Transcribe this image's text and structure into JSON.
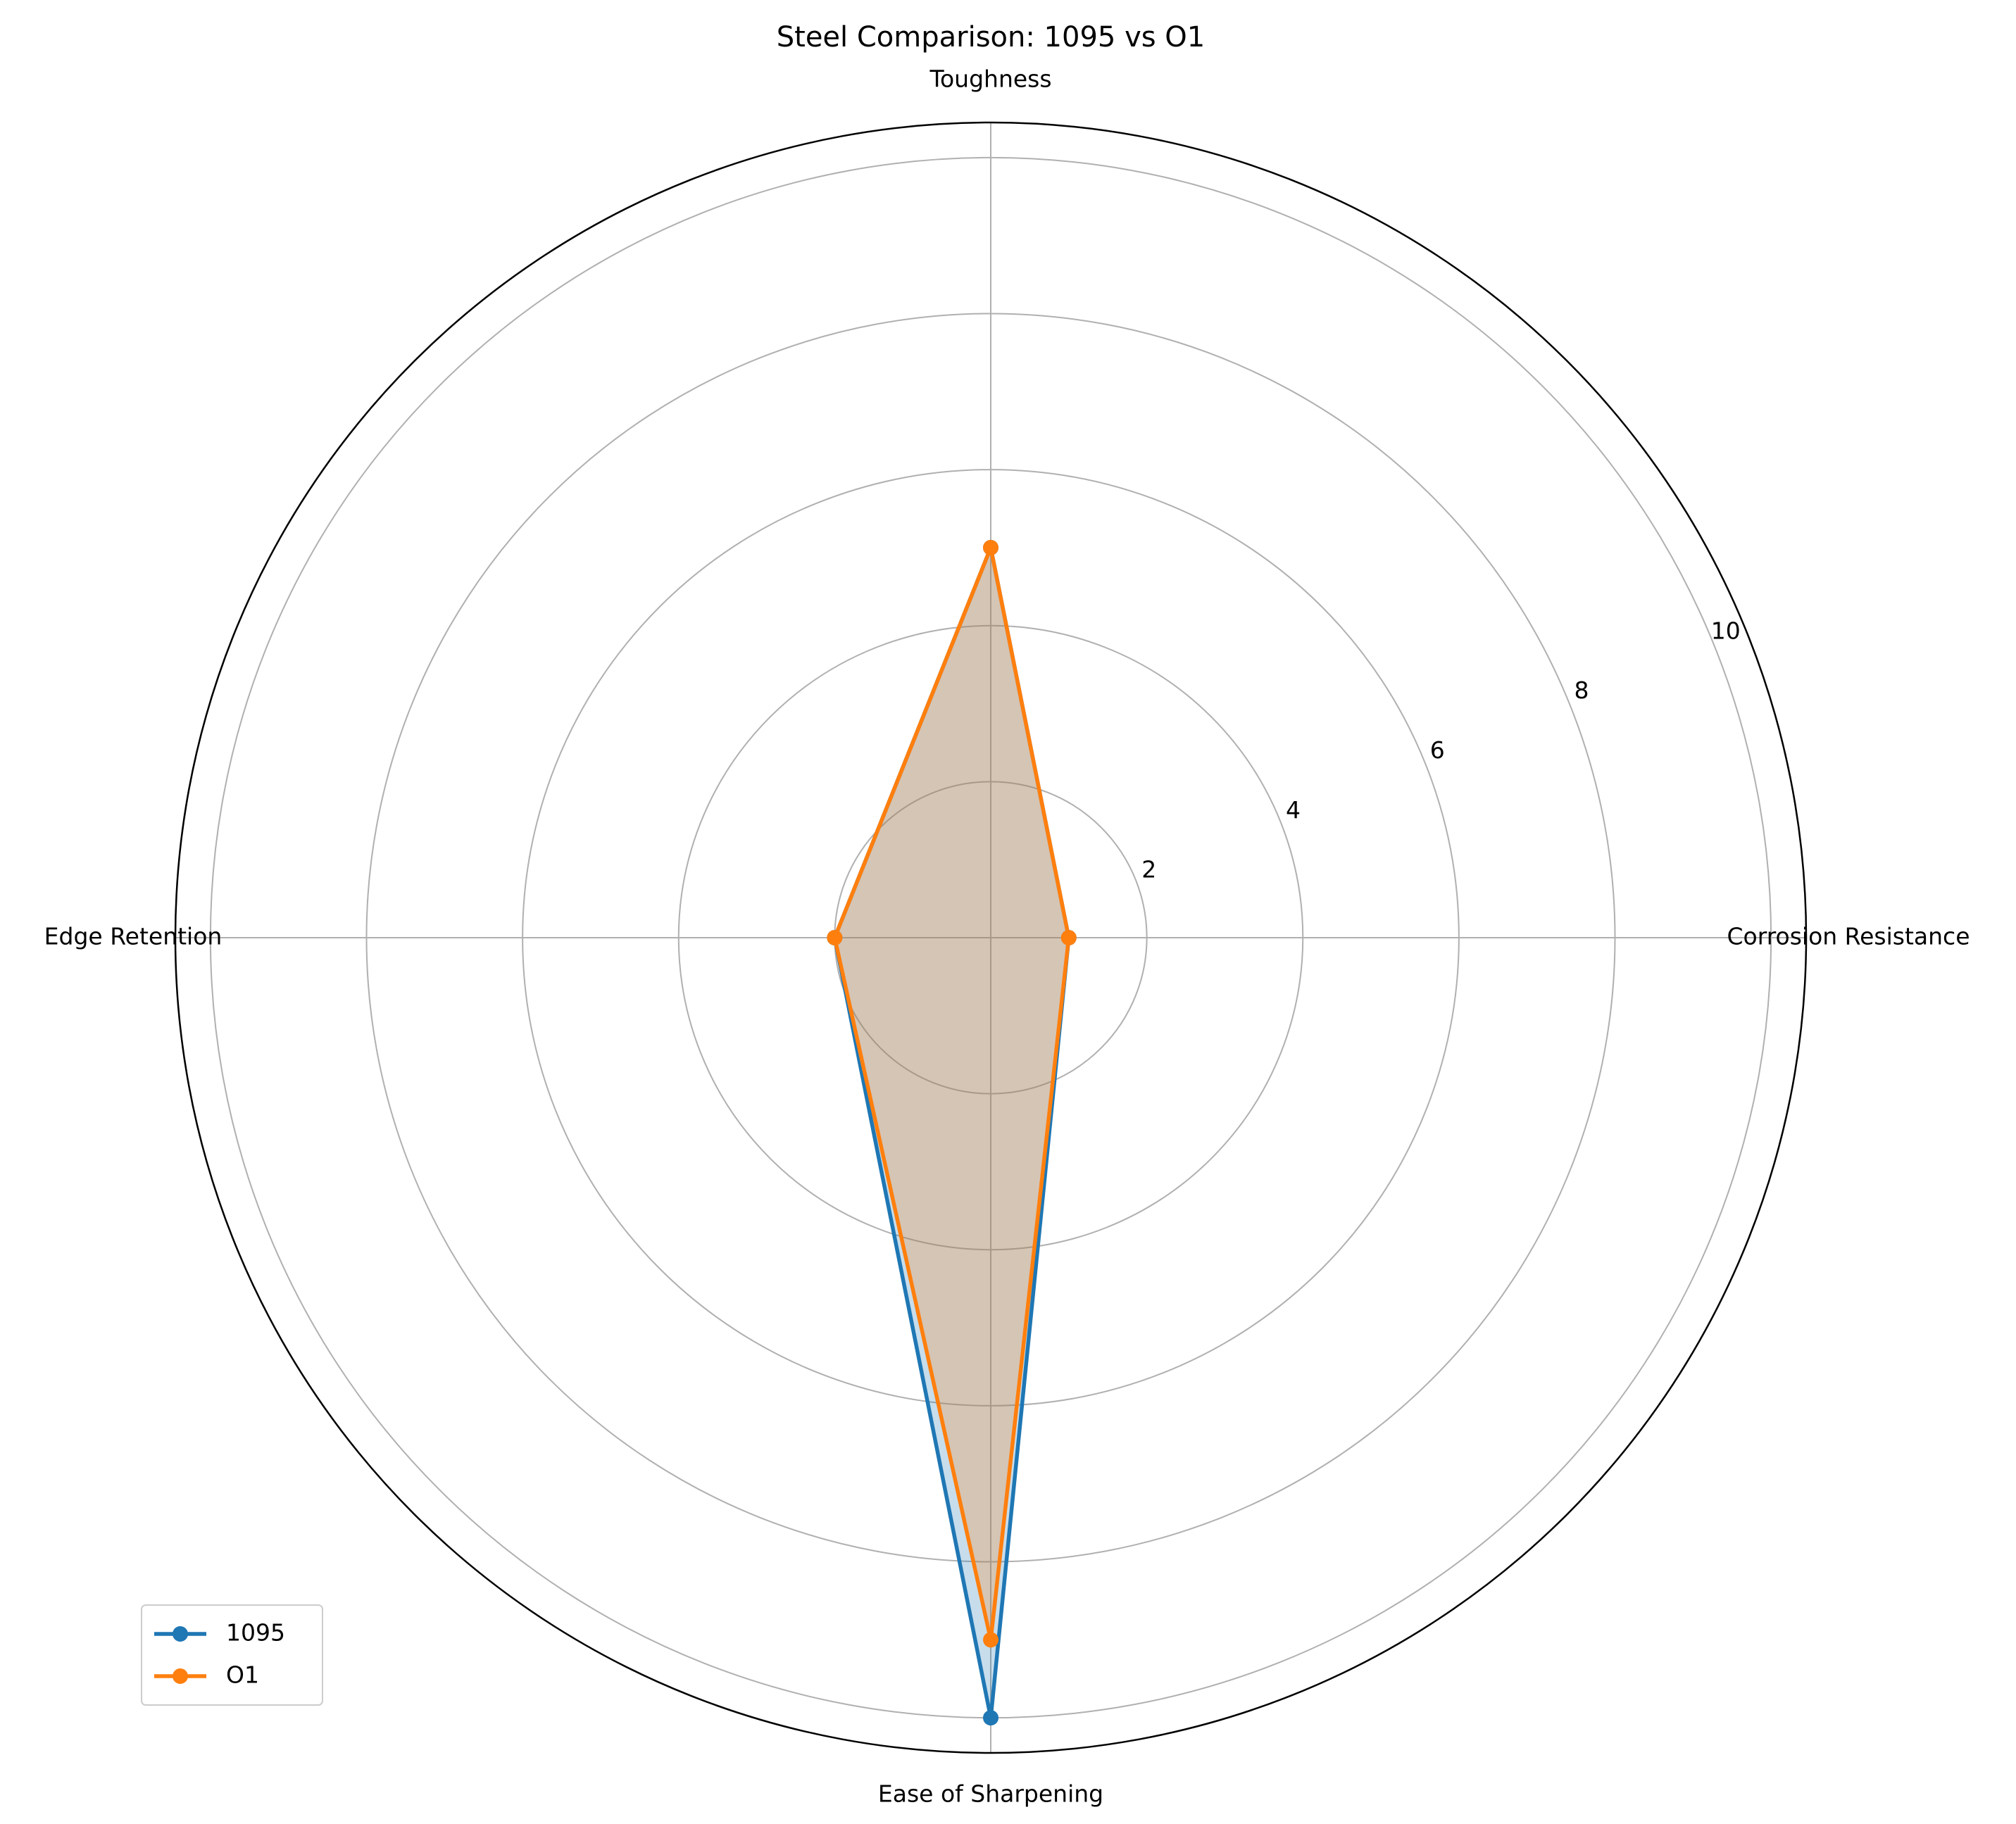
{
  "chart_data": {
    "type": "radar",
    "title": "Steel Comparison: 1095 vs O1",
    "categories": [
      "Corrosion Resistance",
      "Toughness",
      "Edge Retention",
      "Ease of Sharpening"
    ],
    "series": [
      {
        "name": "1095",
        "color": "#1f77b4",
        "values": [
          1,
          5,
          2,
          10
        ]
      },
      {
        "name": "O1",
        "color": "#ff7f0e",
        "values": [
          1,
          5,
          2,
          9
        ]
      }
    ],
    "ylim": [
      0,
      10.45
    ],
    "yticks": [
      2,
      4,
      6,
      8,
      10
    ],
    "grid": true,
    "legend": "lower left"
  }
}
